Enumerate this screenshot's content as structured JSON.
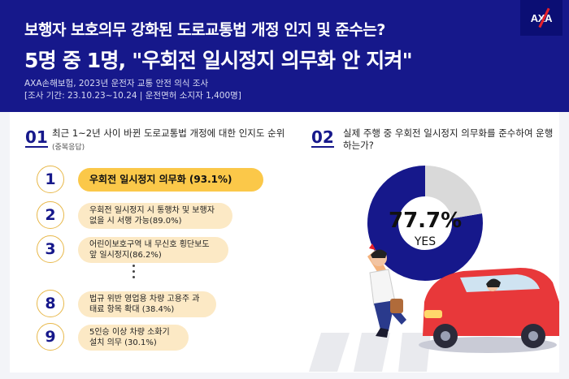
{
  "header": {
    "subtitle": "보행자 보호의무 강화된 도로교통법 개정 인지 및 준수는?",
    "title": "5명 중 1명, \"우회전 일시정지 의무화 안 지켜\"",
    "source": "AXA손해보험, 2023년 운전자 교통 안전 의식 조사",
    "period": "[조사 기간: 23.10.23~10.24 | 운전면허 소지자 1,400명]",
    "logo": "AXA"
  },
  "section1": {
    "num": "01",
    "question": "최근 1~2년 사이 바뀐 도로교통법 개정에 대한 인지도 순위",
    "note": "(중복응답)",
    "items": [
      {
        "rank": "1",
        "text": "우회전 일시정지 의무화 (93.1%)"
      },
      {
        "rank": "2",
        "text": "우회전 일시정지 시 통행차 및 보행자 없을 시 서행 가능(89.0%)"
      },
      {
        "rank": "3",
        "text": "어린이보호구역 내 무신호 횡단보도 앞 일시정지(86.2%)"
      },
      {
        "rank": "8",
        "text": "법규 위반 영업용 차량 고용주 과태료 항목 확대 (38.4%)"
      },
      {
        "rank": "9",
        "text": "5인승 이상 차량 소화기 설치 의무 (30.1%)"
      }
    ]
  },
  "section2": {
    "num": "02",
    "question": "실제 주행 중 우회전 일시정지 의무화를 준수하여 운행하는가?",
    "pct_label": "77.7%",
    "answer": "YES"
  },
  "colors": {
    "navy": "#16188b",
    "gray": "#d9d9d9",
    "gold": "#fbc849",
    "red": "#e8202a"
  },
  "chart_data": [
    {
      "type": "bar",
      "title": "최근 1~2년 사이 바뀐 도로교통법 개정에 대한 인지도 순위",
      "categories": [
        "우회전 일시정지 의무화",
        "우회전 일시정지 시 통행차 및 보행자 없을 시 서행 가능",
        "어린이보호구역 내 무신호 횡단보도 앞 일시정지",
        "법규 위반 영업용 차량 고용주 과태료 항목 확대",
        "5인승 이상 차량 소화기 설치 의무"
      ],
      "ranks": [
        1,
        2,
        3,
        8,
        9
      ],
      "values": [
        93.1,
        89.0,
        86.2,
        38.4,
        30.1
      ],
      "unit": "%"
    },
    {
      "type": "pie",
      "title": "실제 주행 중 우회전 일시정지 의무화를 준수하여 운행하는가?",
      "categories": [
        "YES",
        ""
      ],
      "values": [
        77.7,
        22.3
      ],
      "colors": [
        "#16188b",
        "#d9d9d9"
      ]
    }
  ]
}
